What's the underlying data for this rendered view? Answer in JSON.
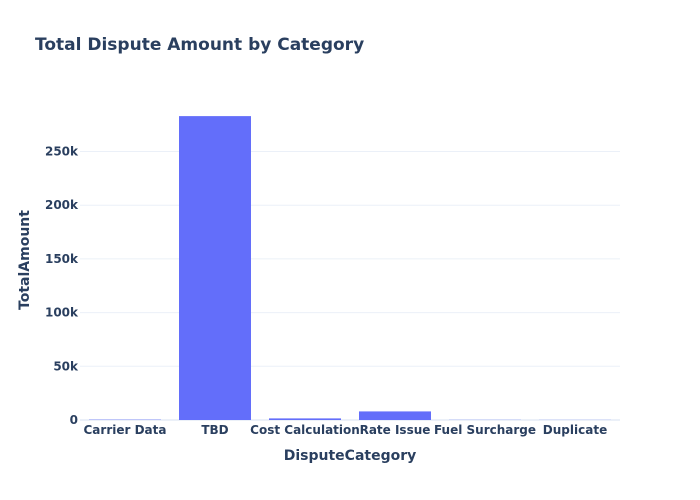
{
  "chart_data": {
    "type": "bar",
    "title": "Total Dispute Amount by Category",
    "xlabel": "DisputeCategory",
    "ylabel": "TotalAmount",
    "categories": [
      "Carrier Data",
      "TBD",
      "Cost Calculation",
      "Rate Issue",
      "Fuel Surcharge",
      "Duplicate"
    ],
    "values": [
      300,
      283000,
      1500,
      8000,
      150,
      100
    ],
    "ylim": [
      0,
      298000
    ],
    "yticks": [
      0,
      50000,
      100000,
      150000,
      200000,
      250000
    ],
    "ytick_labels": [
      "0",
      "50k",
      "100k",
      "150k",
      "200k",
      "250k"
    ],
    "grid": true,
    "legend": "none",
    "colors": {
      "bar": "#636efa",
      "grid": "#ebf0f8",
      "text": "#2a3f5f"
    }
  }
}
